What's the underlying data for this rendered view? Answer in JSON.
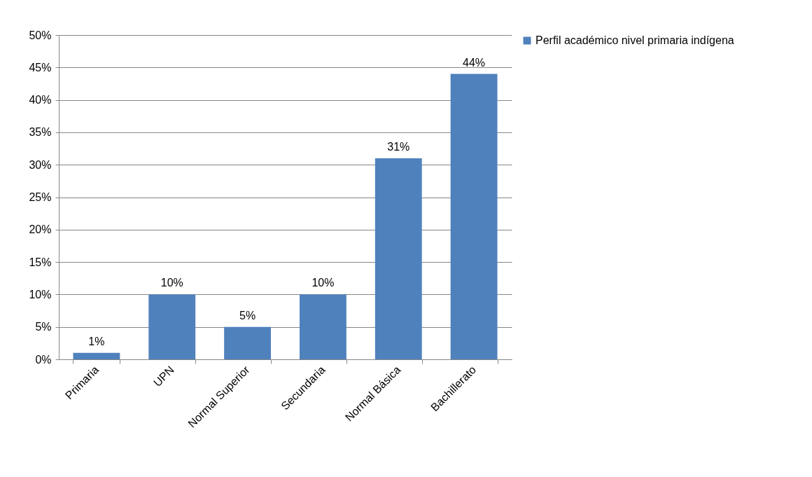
{
  "chart_data": {
    "type": "bar",
    "categories": [
      "Primaria",
      "UPN",
      "Normal Superior",
      "Secundaria",
      "Normal Básica",
      "Bachillerato"
    ],
    "series": [
      {
        "name": "Perfil académico nivel primaria indígena",
        "color": "#4f81bd",
        "values": [
          1,
          10,
          5,
          10,
          31,
          44
        ],
        "value_labels": [
          "1%",
          "10%",
          "5%",
          "10%",
          "31%",
          "44%"
        ]
      }
    ],
    "ylim": [
      0,
      50
    ],
    "yticks": [
      {
        "value": 0,
        "label": "0%"
      },
      {
        "value": 5,
        "label": "5%"
      },
      {
        "value": 10,
        "label": "10%"
      },
      {
        "value": 15,
        "label": "15%"
      },
      {
        "value": 20,
        "label": "20%"
      },
      {
        "value": 25,
        "label": "25%"
      },
      {
        "value": 30,
        "label": "30%"
      },
      {
        "value": 35,
        "label": "35%"
      },
      {
        "value": 40,
        "label": "40%"
      },
      {
        "value": 45,
        "label": "45%"
      },
      {
        "value": 50,
        "label": "50%"
      }
    ],
    "grid": "y",
    "legend": "right"
  }
}
